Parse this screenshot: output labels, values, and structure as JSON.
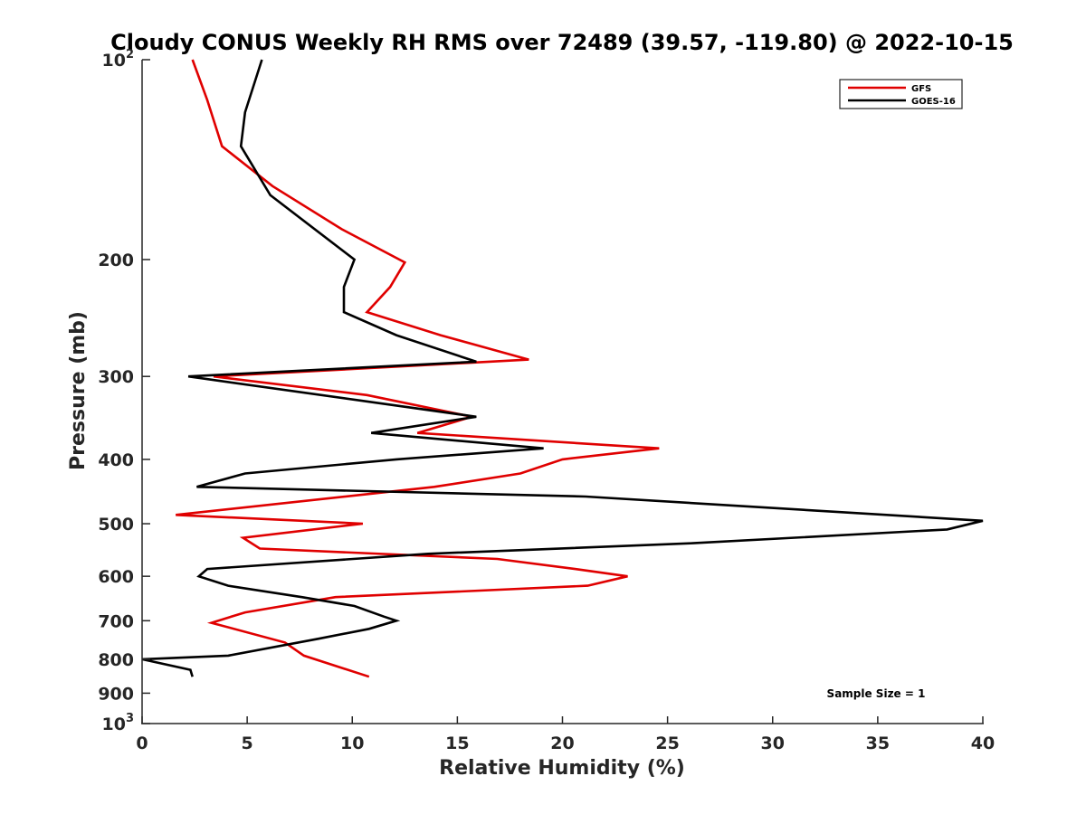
{
  "chart_data": {
    "type": "line",
    "title": "Cloudy CONUS Weekly RH RMS over 72489 (39.57, -119.80) @ 2022-10-15",
    "xlabel": "Relative Humidity (%)",
    "ylabel": "Pressure (mb)",
    "xlim": [
      0,
      40
    ],
    "ylim": [
      100,
      1000
    ],
    "y_scale": "log",
    "y_reversed": true,
    "x_ticks": [
      0,
      5,
      10,
      15,
      20,
      25,
      30,
      35,
      40
    ],
    "y_ticks": [
      {
        "value": 100,
        "base": "10",
        "exp": "2"
      },
      {
        "value": 200,
        "label": "200"
      },
      {
        "value": 300,
        "label": "300"
      },
      {
        "value": 400,
        "label": "400"
      },
      {
        "value": 500,
        "label": "500"
      },
      {
        "value": 600,
        "label": "600"
      },
      {
        "value": 700,
        "label": "700"
      },
      {
        "value": 800,
        "label": "800"
      },
      {
        "value": 900,
        "label": "900"
      },
      {
        "value": 1000,
        "base": "10",
        "exp": "3"
      }
    ],
    "grid": false,
    "legend_position": "top-right",
    "annotation": "Sample Size = 1",
    "series": [
      {
        "name": "GFS",
        "color": "#e00000",
        "points": [
          [
            2.4,
            100
          ],
          [
            3.1,
            115
          ],
          [
            3.8,
            135
          ],
          [
            6.2,
            155
          ],
          [
            9.5,
            180
          ],
          [
            12.5,
            202
          ],
          [
            11.8,
            220
          ],
          [
            10.7,
            240
          ],
          [
            14.2,
            260
          ],
          [
            18.4,
            283
          ],
          [
            3.4,
            300
          ],
          [
            10.7,
            320
          ],
          [
            15.7,
            345
          ],
          [
            13.1,
            365
          ],
          [
            24.6,
            385
          ],
          [
            20.0,
            400
          ],
          [
            18.0,
            420
          ],
          [
            13.9,
            440
          ],
          [
            1.6,
            485
          ],
          [
            10.5,
            500
          ],
          [
            4.8,
            525
          ],
          [
            5.6,
            545
          ],
          [
            16.9,
            565
          ],
          [
            20.6,
            585
          ],
          [
            23.1,
            600
          ],
          [
            21.2,
            620
          ],
          [
            9.2,
            645
          ],
          [
            4.9,
            680
          ],
          [
            3.3,
            705
          ],
          [
            6.8,
            755
          ],
          [
            7.7,
            790
          ],
          [
            10.8,
            850
          ]
        ]
      },
      {
        "name": "GOES-16",
        "color": "#000000",
        "points": [
          [
            5.7,
            100
          ],
          [
            4.9,
            120
          ],
          [
            4.7,
            135
          ],
          [
            6.1,
            160
          ],
          [
            10.1,
            200
          ],
          [
            9.6,
            220
          ],
          [
            9.6,
            240
          ],
          [
            12.1,
            260
          ],
          [
            15.9,
            285
          ],
          [
            2.2,
            300
          ],
          [
            15.9,
            345
          ],
          [
            10.9,
            365
          ],
          [
            19.1,
            385
          ],
          [
            12.1,
            400
          ],
          [
            4.9,
            420
          ],
          [
            2.6,
            440
          ],
          [
            21.1,
            455
          ],
          [
            40.0,
            495
          ],
          [
            38.3,
            510
          ],
          [
            26.2,
            535
          ],
          [
            13.6,
            555
          ],
          [
            3.1,
            585
          ],
          [
            2.7,
            600
          ],
          [
            4.1,
            620
          ],
          [
            7.6,
            645
          ],
          [
            10.1,
            665
          ],
          [
            11.5,
            690
          ],
          [
            12.1,
            700
          ],
          [
            10.8,
            720
          ],
          [
            8.4,
            745
          ],
          [
            4.1,
            790
          ],
          [
            0.0,
            800
          ],
          [
            2.3,
            830
          ],
          [
            2.4,
            850
          ]
        ]
      }
    ]
  }
}
